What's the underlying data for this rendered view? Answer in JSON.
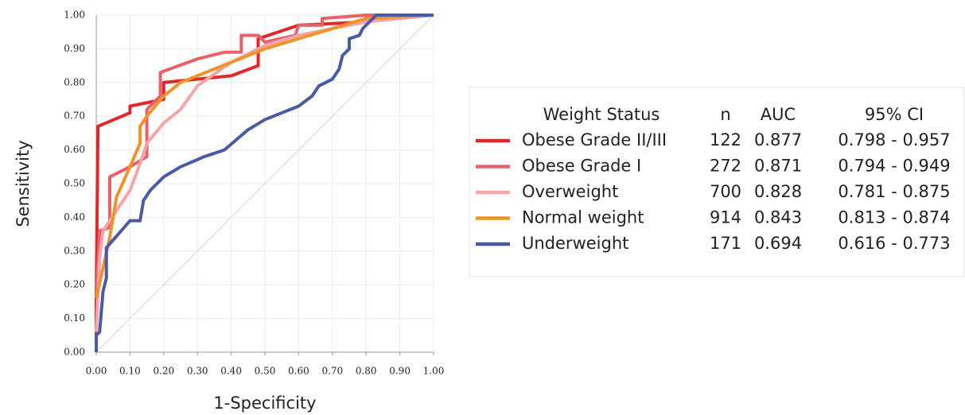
{
  "chart_data": {
    "type": "line",
    "xlabel": "1-Specificity",
    "ylabel": "Sensitivity",
    "xlim": [
      0,
      1
    ],
    "ylim": [
      0,
      1
    ],
    "grid": true,
    "xticks": [
      {
        "value": 0,
        "label": "0.00"
      },
      {
        "value": 0.1,
        "label": "0.10"
      },
      {
        "value": 0.2,
        "label": "0.20"
      },
      {
        "value": 0.3,
        "label": "0.30"
      },
      {
        "value": 0.4,
        "label": "0.40"
      },
      {
        "value": 0.5,
        "label": "0.50"
      },
      {
        "value": 0.6,
        "label": "0.60"
      },
      {
        "value": 0.7,
        "label": "0.70"
      },
      {
        "value": 0.8,
        "label": "0.80"
      },
      {
        "value": 0.9,
        "label": "0.90"
      },
      {
        "value": 1,
        "label": "1.00"
      }
    ],
    "yticks": [
      {
        "value": 0,
        "label": "0.00"
      },
      {
        "value": 0.1,
        "label": "0.10"
      },
      {
        "value": 0.2,
        "label": "0.20"
      },
      {
        "value": 0.3,
        "label": "0.30"
      },
      {
        "value": 0.4,
        "label": "0.40"
      },
      {
        "value": 0.5,
        "label": "0.50"
      },
      {
        "value": 0.6,
        "label": "0.60"
      },
      {
        "value": 0.7,
        "label": "0.70"
      },
      {
        "value": 0.8,
        "label": "0.80"
      },
      {
        "value": 0.9,
        "label": "0.90"
      },
      {
        "value": 1,
        "label": "1.00"
      }
    ],
    "legend_columns": [
      "Weight Status",
      "n",
      "AUC",
      "95% CI"
    ],
    "series": [
      {
        "name": "Obese Grade II/III",
        "color": "#e0282a",
        "n": 122,
        "auc": 0.877,
        "ci": "0.798 - 0.957",
        "x": [
          0,
          0,
          0.005,
          0.1,
          0.1,
          0.15,
          0.2,
          0.2,
          0.3,
          0.4,
          0.48,
          0.48,
          0.6,
          0.8,
          0.8,
          1
        ],
        "values": [
          0,
          0.16,
          0.67,
          0.71,
          0.73,
          0.74,
          0.75,
          0.8,
          0.81,
          0.82,
          0.85,
          0.93,
          0.97,
          0.98,
          1,
          1
        ]
      },
      {
        "name": "Obese Grade I",
        "color": "#e8606a",
        "n": 272,
        "auc": 0.871,
        "ci": "0.794 - 0.949",
        "x": [
          0,
          0.01,
          0.04,
          0.04,
          0.1,
          0.15,
          0.15,
          0.19,
          0.19,
          0.3,
          0.38,
          0.43,
          0.43,
          0.48,
          0.5,
          0.59,
          0.6,
          0.67,
          0.67,
          0.8,
          1
        ],
        "values": [
          0.16,
          0.36,
          0.37,
          0.52,
          0.55,
          0.58,
          0.72,
          0.76,
          0.83,
          0.87,
          0.89,
          0.89,
          0.94,
          0.94,
          0.92,
          0.94,
          0.97,
          0.97,
          0.99,
          1,
          1
        ]
      },
      {
        "name": "Overweight",
        "color": "#f4a5a8",
        "n": 700,
        "auc": 0.828,
        "ci": "0.781 - 0.875",
        "x": [
          0,
          0.01,
          0.02,
          0.06,
          0.1,
          0.13,
          0.15,
          0.2,
          0.25,
          0.3,
          0.4,
          0.5,
          0.6,
          0.7,
          0.8,
          1
        ],
        "values": [
          0.06,
          0.28,
          0.36,
          0.42,
          0.48,
          0.56,
          0.62,
          0.68,
          0.72,
          0.79,
          0.86,
          0.91,
          0.94,
          0.96,
          0.98,
          1
        ]
      },
      {
        "name": "Normal weight",
        "color": "#f0932a",
        "n": 914,
        "auc": 0.843,
        "ci": "0.813 - 0.874",
        "x": [
          0,
          0.02,
          0.04,
          0.06,
          0.1,
          0.13,
          0.13,
          0.15,
          0.2,
          0.25,
          0.3,
          0.4,
          0.5,
          0.6,
          0.7,
          0.8,
          1
        ],
        "values": [
          0.16,
          0.25,
          0.34,
          0.46,
          0.55,
          0.62,
          0.67,
          0.7,
          0.76,
          0.8,
          0.82,
          0.86,
          0.9,
          0.93,
          0.96,
          0.99,
          1
        ]
      },
      {
        "name": "Underweight",
        "color": "#4b5aa5",
        "n": 171,
        "auc": 0.694,
        "ci": "0.616 - 0.773",
        "x": [
          0,
          0,
          0.01,
          0.02,
          0.03,
          0.03,
          0.1,
          0.13,
          0.14,
          0.16,
          0.2,
          0.25,
          0.32,
          0.38,
          0.45,
          0.5,
          0.6,
          0.64,
          0.66,
          0.7,
          0.72,
          0.73,
          0.75,
          0.75,
          0.78,
          0.79,
          0.83,
          1
        ],
        "values": [
          0,
          0.05,
          0.06,
          0.18,
          0.22,
          0.31,
          0.39,
          0.39,
          0.45,
          0.48,
          0.52,
          0.55,
          0.58,
          0.6,
          0.66,
          0.69,
          0.73,
          0.76,
          0.79,
          0.81,
          0.84,
          0.88,
          0.9,
          0.93,
          0.94,
          0.96,
          1,
          1
        ]
      }
    ]
  }
}
